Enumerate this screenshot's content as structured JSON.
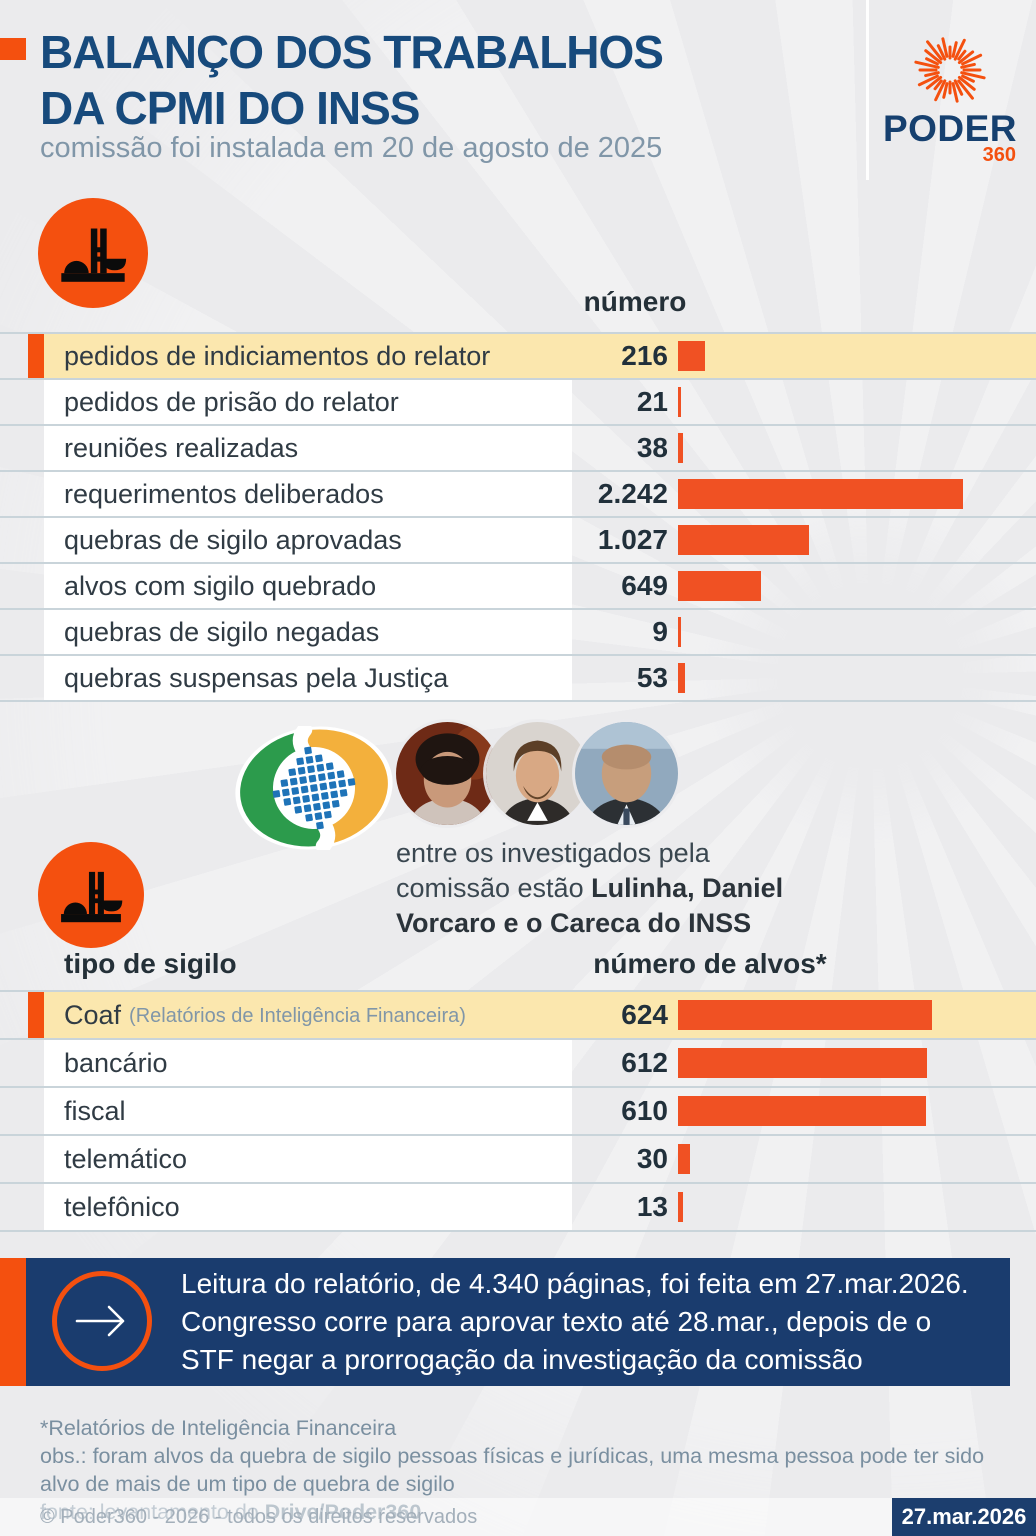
{
  "header": {
    "title_line1": "BALANÇO DOS TRABALHOS",
    "title_line2": "DA CPMI DO INSS",
    "subtitle": "comissão foi instalada em 20 de agosto de 2025",
    "logo_name": "PODER",
    "logo_suffix": "360"
  },
  "chart_data": [
    {
      "type": "bar",
      "value_column_header": "número",
      "categories": [
        "pedidos de indiciamentos do relator",
        "pedidos de prisão do relator",
        "reuniões realizadas",
        "requerimentos deliberados",
        "quebras de sigilo aprovadas",
        "alvos com sigilo quebrado",
        "quebras de sigilo negadas",
        "quebras suspensas pela Justiça"
      ],
      "values": [
        216,
        21,
        38,
        2242,
        1027,
        649,
        9,
        53
      ],
      "value_labels": [
        "216",
        "21",
        "38",
        "2.242",
        "1.027",
        "649",
        "9",
        "53"
      ],
      "category_notes": [
        "",
        "",
        "",
        "",
        "",
        "",
        "",
        ""
      ],
      "highlight_index": 0,
      "xlim": [
        0,
        2242
      ],
      "orientation": "horizontal",
      "grid": false,
      "legend": "none"
    },
    {
      "type": "bar",
      "category_column_header": "tipo de sigilo",
      "value_column_header": "número de alvos*",
      "categories": [
        "Coaf",
        "bancário",
        "fiscal",
        "telemático",
        "telefônico"
      ],
      "category_notes": [
        "(Relatórios de Inteligência Financeira)",
        "",
        "",
        "",
        ""
      ],
      "values": [
        624,
        612,
        610,
        30,
        13
      ],
      "value_labels": [
        "624",
        "612",
        "610",
        "30",
        "13"
      ],
      "highlight_index": 0,
      "xlim": [
        0,
        700
      ],
      "orientation": "horizontal",
      "grid": false,
      "legend": "none"
    }
  ],
  "middle": {
    "caption_regular": "entre os investigados pela comissão estão ",
    "caption_bold": "Lulinha, Daniel Vorcaro e o Careca do INSS",
    "people": [
      "Lulinha",
      "Daniel Vorcaro",
      "Careca do INSS"
    ]
  },
  "banner": {
    "text": "Leitura do relatório, de 4.340 páginas, foi feita em 27.mar.2026. Congresso corre para aprovar texto até 28.mar., depois de o STF negar a prorrogação da investigação da comissão"
  },
  "footnotes": {
    "note1": "*Relatórios de Inteligência Financeira",
    "note2": "obs.: foram alvos da quebra de sigilo pessoas físicas e jurídicas, uma mesma pessoa pode ter sido alvo de mais de um tipo de quebra de sigilo",
    "source_prefix": "fonte: levantamento do ",
    "source_bold": "Drive/Poder360"
  },
  "footer_bar": {
    "copyright": "© Poder360 - 2026 - todos os direitos reservados",
    "date": "27.mar.2026"
  },
  "icons": {
    "section_icon": "congress-building-icon",
    "logo_icon": "sunburst-icon",
    "banner_icon": "arrow-right-icon",
    "middle_icon": "inss-logo-icon"
  },
  "colors": {
    "background": "#EBEBED",
    "orange": "#F05123",
    "orange_bright": "#F4500F",
    "navy_title": "#174A7C",
    "navy_banner": "#1A3C6E",
    "highlight_yellow": "#FBE7AE",
    "row_divider": "#C9D4DA",
    "label_text": "#303B44",
    "muted_blue_gray": "#8096A8",
    "footnote_text": "#7A8FA0",
    "inss_green": "#2C9B4C",
    "inss_yellow": "#F3B03C",
    "inss_blue": "#1E73B8"
  }
}
